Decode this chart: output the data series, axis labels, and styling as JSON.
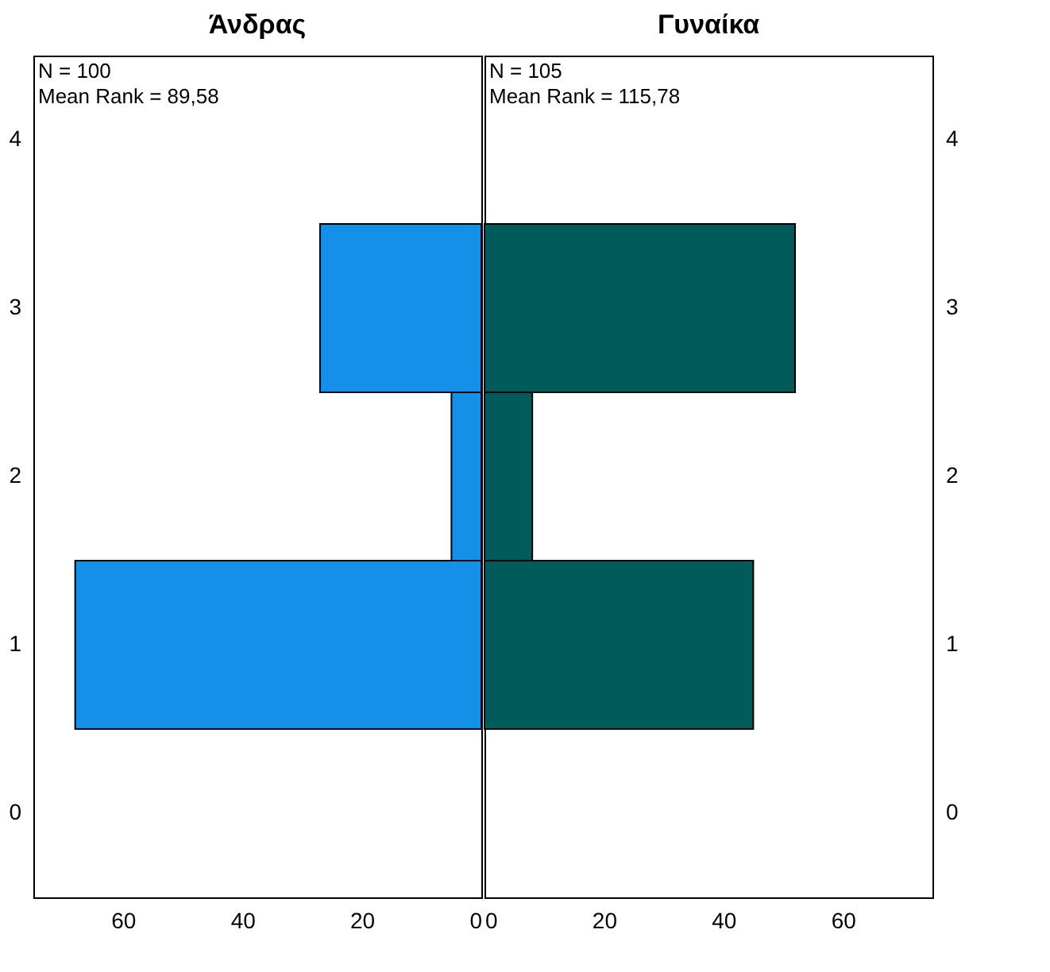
{
  "chart_data": [
    {
      "type": "bar",
      "orientation": "horizontal",
      "title": "Άνδρας",
      "categories": [
        "4",
        "3",
        "2",
        "1",
        "0"
      ],
      "values": [
        null,
        27,
        5,
        68,
        null
      ],
      "color": "#1490e8",
      "xlim": [
        75,
        0
      ],
      "xticks": [
        60,
        40,
        20,
        0
      ],
      "annotations": [
        "N = 100",
        "Mean Rank = 89,58"
      ]
    },
    {
      "type": "bar",
      "orientation": "horizontal",
      "title": "Γυναίκα",
      "categories": [
        "4",
        "3",
        "2",
        "1",
        "0"
      ],
      "values": [
        null,
        52,
        8,
        45,
        null
      ],
      "color": "#025b5b",
      "xlim": [
        0,
        75
      ],
      "xticks": [
        0,
        20,
        40,
        60
      ],
      "annotations": [
        "N = 105",
        "Mean Rank = 115,78"
      ]
    }
  ]
}
